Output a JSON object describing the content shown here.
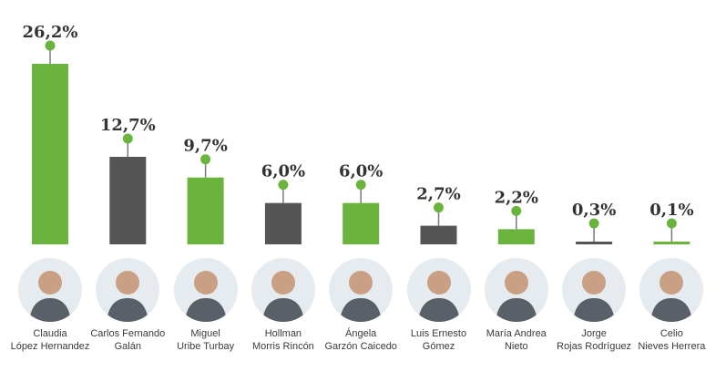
{
  "chart_data": {
    "type": "bar",
    "categories": [
      "Claudia López Hernandez",
      "Carlos Fernando Galán",
      "Miguel Uribe Turbay",
      "Hollman Morris Rincón",
      "Ángela Garzón Caicedo",
      "Luis Ernesto Gómez",
      "María Andrea Nieto",
      "Jorge Rojas Rodríguez",
      "Celio Nieves Herrera"
    ],
    "values": [
      26.2,
      12.7,
      9.7,
      6.0,
      6.0,
      2.7,
      2.2,
      0.3,
      0.1
    ],
    "value_labels": [
      "26,2%",
      "12,7%",
      "9,7%",
      "6,0%",
      "6,0%",
      "2,7%",
      "2,2%",
      "0,3%",
      "0,1%"
    ],
    "ylim": [
      0,
      26.2
    ],
    "grid": false,
    "colors": {
      "green": "#6ab43e",
      "dark": "#555555",
      "marker": "#6ab43e",
      "label": "#333333"
    },
    "bar_colors": [
      "#6ab43e",
      "#555555",
      "#6ab43e",
      "#555555",
      "#6ab43e",
      "#555555",
      "#6ab43e",
      "#555555",
      "#6ab43e"
    ]
  },
  "candidates": [
    {
      "name_lines": [
        "Claudia",
        "López Hernandez"
      ],
      "icon": "person-avatar-icon"
    },
    {
      "name_lines": [
        "Carlos Fernando",
        "Galán"
      ],
      "icon": "person-avatar-icon"
    },
    {
      "name_lines": [
        "Miguel",
        "Uribe Turbay"
      ],
      "icon": "person-avatar-icon"
    },
    {
      "name_lines": [
        "Hollman",
        "Morris Rincón"
      ],
      "icon": "person-avatar-icon"
    },
    {
      "name_lines": [
        "Ángela",
        "Garzón Caicedo"
      ],
      "icon": "person-avatar-icon"
    },
    {
      "name_lines": [
        "Luis Ernesto",
        "Gómez"
      ],
      "icon": "person-avatar-icon"
    },
    {
      "name_lines": [
        "María Andrea",
        "Nieto"
      ],
      "icon": "person-avatar-icon"
    },
    {
      "name_lines": [
        "Jorge",
        "Rojas Rodríguez"
      ],
      "icon": "person-avatar-icon"
    },
    {
      "name_lines": [
        "Celio",
        "Nieves Herrera"
      ],
      "icon": "person-avatar-icon"
    }
  ]
}
